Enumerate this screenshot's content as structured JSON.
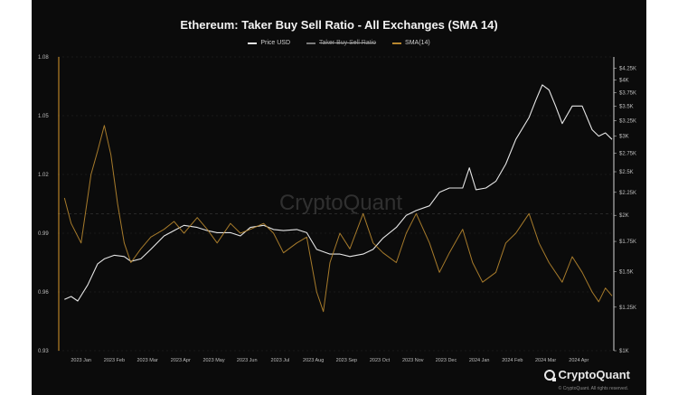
{
  "chart_data": {
    "type": "line",
    "title": "Ethereum: Taker Buy Sell Ratio - All Exchanges (SMA 14)",
    "legend": [
      {
        "name": "Price USD",
        "color": "#e6e6e6",
        "style": "normal"
      },
      {
        "name": "Taker Buy Sell Ratio",
        "color": "#7a7a7a",
        "style": "strikethrough"
      },
      {
        "name": "SMA(14)",
        "color": "#b8872f",
        "style": "normal"
      }
    ],
    "legend_position": "top-center",
    "watermark": "CryptoQuant",
    "x_ticks": [
      "2023 Jan",
      "2023 Feb",
      "2023 Mar",
      "2023 Apr",
      "2023 May",
      "2023 Jun",
      "2023 Jul",
      "2023 Aug",
      "2023 Sep",
      "2023 Oct",
      "2023 Nov",
      "2023 Dec",
      "2024 Jan",
      "2024 Feb",
      "2024 Mar",
      "2024 Apr"
    ],
    "y_left": {
      "ylim": [
        0.93,
        1.08
      ],
      "ticks": [
        "1.08",
        "1.05",
        "1.02",
        "0.99",
        "0.96",
        "0.93"
      ]
    },
    "y_right": {
      "scale": "log",
      "ylim": [
        1000,
        4500
      ],
      "ticks": [
        "$4.25K",
        "$4K",
        "$3.75K",
        "$3.5K",
        "$3.25K",
        "$3K",
        "$2.75K",
        "$2.5K",
        "$2.25K",
        "$2K",
        "$1.75K",
        "$1.5K",
        "$1.25K",
        "$1K"
      ]
    },
    "x_range_months": [
      -0.2,
      16.5
    ],
    "grid": "dashed horizontal",
    "series": [
      {
        "name": "Price USD",
        "axis": "right",
        "points": [
          [
            0,
            1300
          ],
          [
            0.2,
            1320
          ],
          [
            0.4,
            1290
          ],
          [
            0.7,
            1400
          ],
          [
            1.0,
            1560
          ],
          [
            1.2,
            1600
          ],
          [
            1.5,
            1630
          ],
          [
            1.8,
            1620
          ],
          [
            2.0,
            1580
          ],
          [
            2.3,
            1600
          ],
          [
            2.6,
            1680
          ],
          [
            3.0,
            1800
          ],
          [
            3.3,
            1850
          ],
          [
            3.6,
            1900
          ],
          [
            4.0,
            1880
          ],
          [
            4.3,
            1850
          ],
          [
            4.6,
            1830
          ],
          [
            5.0,
            1830
          ],
          [
            5.3,
            1800
          ],
          [
            5.6,
            1880
          ],
          [
            6.0,
            1900
          ],
          [
            6.3,
            1860
          ],
          [
            6.6,
            1850
          ],
          [
            7.0,
            1860
          ],
          [
            7.3,
            1830
          ],
          [
            7.6,
            1680
          ],
          [
            8.0,
            1640
          ],
          [
            8.3,
            1640
          ],
          [
            8.6,
            1620
          ],
          [
            9.0,
            1640
          ],
          [
            9.3,
            1680
          ],
          [
            9.6,
            1780
          ],
          [
            10.0,
            1880
          ],
          [
            10.3,
            2000
          ],
          [
            10.6,
            2050
          ],
          [
            11.0,
            2100
          ],
          [
            11.3,
            2250
          ],
          [
            11.6,
            2300
          ],
          [
            12.0,
            2300
          ],
          [
            12.2,
            2550
          ],
          [
            12.4,
            2280
          ],
          [
            12.7,
            2300
          ],
          [
            13.0,
            2380
          ],
          [
            13.3,
            2600
          ],
          [
            13.6,
            2950
          ],
          [
            14.0,
            3300
          ],
          [
            14.2,
            3600
          ],
          [
            14.4,
            3900
          ],
          [
            14.6,
            3800
          ],
          [
            14.8,
            3500
          ],
          [
            15.0,
            3200
          ],
          [
            15.3,
            3500
          ],
          [
            15.6,
            3500
          ],
          [
            15.9,
            3100
          ],
          [
            16.1,
            3000
          ],
          [
            16.3,
            3050
          ],
          [
            16.5,
            2950
          ]
        ]
      },
      {
        "name": "SMA(14)",
        "axis": "left",
        "points": [
          [
            0,
            1.008
          ],
          [
            0.2,
            0.995
          ],
          [
            0.5,
            0.985
          ],
          [
            0.8,
            1.02
          ],
          [
            1.0,
            1.032
          ],
          [
            1.2,
            1.045
          ],
          [
            1.4,
            1.03
          ],
          [
            1.6,
            1.005
          ],
          [
            1.8,
            0.985
          ],
          [
            2.0,
            0.975
          ],
          [
            2.3,
            0.982
          ],
          [
            2.6,
            0.988
          ],
          [
            3.0,
            0.992
          ],
          [
            3.3,
            0.996
          ],
          [
            3.6,
            0.99
          ],
          [
            4.0,
            0.998
          ],
          [
            4.3,
            0.992
          ],
          [
            4.6,
            0.985
          ],
          [
            5.0,
            0.995
          ],
          [
            5.3,
            0.99
          ],
          [
            5.6,
            0.992
          ],
          [
            6.0,
            0.995
          ],
          [
            6.3,
            0.99
          ],
          [
            6.6,
            0.98
          ],
          [
            7.0,
            0.985
          ],
          [
            7.3,
            0.988
          ],
          [
            7.6,
            0.96
          ],
          [
            7.8,
            0.95
          ],
          [
            8.0,
            0.975
          ],
          [
            8.3,
            0.99
          ],
          [
            8.6,
            0.982
          ],
          [
            9.0,
            1.0
          ],
          [
            9.3,
            0.985
          ],
          [
            9.6,
            0.98
          ],
          [
            10.0,
            0.975
          ],
          [
            10.3,
            0.99
          ],
          [
            10.6,
            1.0
          ],
          [
            11.0,
            0.985
          ],
          [
            11.3,
            0.97
          ],
          [
            11.6,
            0.98
          ],
          [
            12.0,
            0.992
          ],
          [
            12.3,
            0.975
          ],
          [
            12.6,
            0.965
          ],
          [
            13.0,
            0.97
          ],
          [
            13.3,
            0.985
          ],
          [
            13.6,
            0.99
          ],
          [
            14.0,
            1.0
          ],
          [
            14.3,
            0.985
          ],
          [
            14.6,
            0.975
          ],
          [
            15.0,
            0.965
          ],
          [
            15.3,
            0.978
          ],
          [
            15.6,
            0.97
          ],
          [
            15.9,
            0.96
          ],
          [
            16.1,
            0.955
          ],
          [
            16.3,
            0.962
          ],
          [
            16.5,
            0.958
          ]
        ]
      }
    ]
  },
  "footer": {
    "brand": "CryptoQuant",
    "copyright": "© CryptoQuant. All rights reserved."
  }
}
